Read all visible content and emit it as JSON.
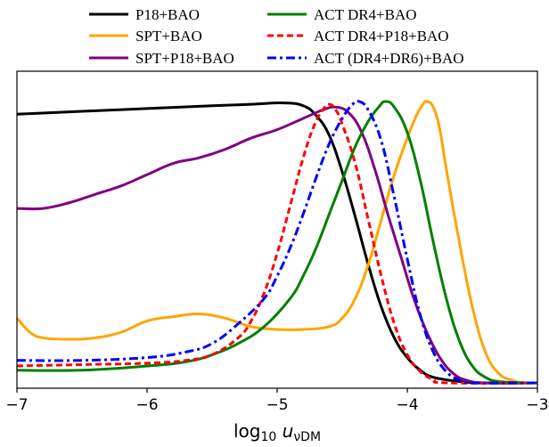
{
  "chart_data": {
    "type": "line",
    "xlabel": "log₁₀ u_νDM",
    "xlim": [
      -7,
      -3
    ],
    "ylim": [
      0,
      1
    ],
    "xticks": [
      -7,
      -6,
      -5,
      -4,
      -3
    ],
    "xtick_labels": [
      "−7",
      "−6",
      "−5",
      "−4",
      "−3"
    ],
    "yticks": [],
    "grid": false,
    "legend_position": "top",
    "series": [
      {
        "name": "P18+BAO",
        "color": "#000000",
        "dash": "solid",
        "points": [
          [
            -7,
            0.955
          ],
          [
            -6.5,
            0.965
          ],
          [
            -6,
            0.975
          ],
          [
            -5.5,
            0.985
          ],
          [
            -5.2,
            0.99
          ],
          [
            -4.95,
            0.995
          ],
          [
            -4.8,
            0.985
          ],
          [
            -4.7,
            0.95
          ],
          [
            -4.6,
            0.88
          ],
          [
            -4.5,
            0.75
          ],
          [
            -4.4,
            0.59
          ],
          [
            -4.3,
            0.42
          ],
          [
            -4.2,
            0.27
          ],
          [
            -4.1,
            0.16
          ],
          [
            -4.0,
            0.09
          ],
          [
            -3.9,
            0.045
          ],
          [
            -3.8,
            0.02
          ],
          [
            -3.6,
            0.005
          ],
          [
            -3.4,
            0.0
          ],
          [
            -3,
            0.0
          ]
        ]
      },
      {
        "name": "SPT+BAO",
        "color": "#FFA500",
        "dash": "solid",
        "points": [
          [
            -7,
            0.23
          ],
          [
            -6.9,
            0.18
          ],
          [
            -6.8,
            0.16
          ],
          [
            -6.6,
            0.155
          ],
          [
            -6.4,
            0.16
          ],
          [
            -6.2,
            0.18
          ],
          [
            -6.0,
            0.22
          ],
          [
            -5.8,
            0.235
          ],
          [
            -5.6,
            0.245
          ],
          [
            -5.4,
            0.23
          ],
          [
            -5.2,
            0.2
          ],
          [
            -5.0,
            0.19
          ],
          [
            -4.8,
            0.19
          ],
          [
            -4.6,
            0.2
          ],
          [
            -4.5,
            0.23
          ],
          [
            -4.4,
            0.3
          ],
          [
            -4.3,
            0.42
          ],
          [
            -4.2,
            0.58
          ],
          [
            -4.1,
            0.74
          ],
          [
            -4.0,
            0.87
          ],
          [
            -3.93,
            0.95
          ],
          [
            -3.88,
            0.99
          ],
          [
            -3.85,
            1.0
          ],
          [
            -3.8,
            0.98
          ],
          [
            -3.75,
            0.9
          ],
          [
            -3.7,
            0.76
          ],
          [
            -3.6,
            0.5
          ],
          [
            -3.5,
            0.27
          ],
          [
            -3.4,
            0.11
          ],
          [
            -3.3,
            0.035
          ],
          [
            -3.2,
            0.01
          ],
          [
            -3.1,
            0.0
          ],
          [
            -3,
            0.0
          ]
        ]
      },
      {
        "name": "SPT+P18+BAO",
        "color": "#800080",
        "dash": "solid",
        "points": [
          [
            -7,
            0.62
          ],
          [
            -6.8,
            0.62
          ],
          [
            -6.6,
            0.64
          ],
          [
            -6.4,
            0.67
          ],
          [
            -6.2,
            0.7
          ],
          [
            -6.0,
            0.74
          ],
          [
            -5.8,
            0.78
          ],
          [
            -5.6,
            0.8
          ],
          [
            -5.4,
            0.83
          ],
          [
            -5.2,
            0.87
          ],
          [
            -5.0,
            0.9
          ],
          [
            -4.8,
            0.94
          ],
          [
            -4.65,
            0.97
          ],
          [
            -4.55,
            0.98
          ],
          [
            -4.45,
            0.96
          ],
          [
            -4.35,
            0.89
          ],
          [
            -4.25,
            0.76
          ],
          [
            -4.15,
            0.6
          ],
          [
            -4.05,
            0.45
          ],
          [
            -3.95,
            0.3
          ],
          [
            -3.85,
            0.18
          ],
          [
            -3.75,
            0.09
          ],
          [
            -3.65,
            0.035
          ],
          [
            -3.55,
            0.01
          ],
          [
            -3.4,
            0.0
          ],
          [
            -3,
            0.0
          ]
        ]
      },
      {
        "name": "ACT DR4+BAO",
        "color": "#008000",
        "dash": "solid",
        "points": [
          [
            -7,
            0.045
          ],
          [
            -6.5,
            0.045
          ],
          [
            -6.0,
            0.06
          ],
          [
            -5.7,
            0.075
          ],
          [
            -5.5,
            0.1
          ],
          [
            -5.3,
            0.14
          ],
          [
            -5.1,
            0.2
          ],
          [
            -4.9,
            0.3
          ],
          [
            -4.8,
            0.38
          ],
          [
            -4.7,
            0.48
          ],
          [
            -4.6,
            0.6
          ],
          [
            -4.5,
            0.72
          ],
          [
            -4.4,
            0.84
          ],
          [
            -4.3,
            0.93
          ],
          [
            -4.22,
            0.98
          ],
          [
            -4.17,
            1.0
          ],
          [
            -4.1,
            0.98
          ],
          [
            -4.0,
            0.89
          ],
          [
            -3.9,
            0.72
          ],
          [
            -3.8,
            0.5
          ],
          [
            -3.7,
            0.3
          ],
          [
            -3.6,
            0.15
          ],
          [
            -3.5,
            0.06
          ],
          [
            -3.4,
            0.02
          ],
          [
            -3.3,
            0.005
          ],
          [
            -3.1,
            0.0
          ],
          [
            -3,
            0.0
          ]
        ]
      },
      {
        "name": "ACT DR4+P18+BAO",
        "color": "#FF0000",
        "dash": "dashed",
        "points": [
          [
            -7,
            0.06
          ],
          [
            -6.5,
            0.065
          ],
          [
            -6.0,
            0.07
          ],
          [
            -5.7,
            0.08
          ],
          [
            -5.5,
            0.1
          ],
          [
            -5.3,
            0.16
          ],
          [
            -5.2,
            0.22
          ],
          [
            -5.1,
            0.32
          ],
          [
            -5.0,
            0.46
          ],
          [
            -4.9,
            0.63
          ],
          [
            -4.8,
            0.8
          ],
          [
            -4.72,
            0.91
          ],
          [
            -4.65,
            0.97
          ],
          [
            -4.6,
            0.99
          ],
          [
            -4.55,
            0.97
          ],
          [
            -4.5,
            0.92
          ],
          [
            -4.4,
            0.78
          ],
          [
            -4.3,
            0.58
          ],
          [
            -4.2,
            0.38
          ],
          [
            -4.1,
            0.21
          ],
          [
            -4.0,
            0.1
          ],
          [
            -3.9,
            0.04
          ],
          [
            -3.8,
            0.012
          ],
          [
            -3.7,
            0.0
          ],
          [
            -3,
            0.0
          ]
        ]
      },
      {
        "name": "ACT (DR4+DR6)+BAO",
        "color": "#0000FF",
        "dash": "dashdot",
        "points": [
          [
            -7,
            0.08
          ],
          [
            -6.5,
            0.08
          ],
          [
            -6.0,
            0.09
          ],
          [
            -5.7,
            0.11
          ],
          [
            -5.5,
            0.14
          ],
          [
            -5.3,
            0.21
          ],
          [
            -5.1,
            0.3
          ],
          [
            -5.0,
            0.38
          ],
          [
            -4.9,
            0.48
          ],
          [
            -4.8,
            0.6
          ],
          [
            -4.7,
            0.73
          ],
          [
            -4.6,
            0.85
          ],
          [
            -4.5,
            0.94
          ],
          [
            -4.42,
            0.99
          ],
          [
            -4.37,
            1.0
          ],
          [
            -4.3,
            0.97
          ],
          [
            -4.2,
            0.86
          ],
          [
            -4.1,
            0.66
          ],
          [
            -4.0,
            0.44
          ],
          [
            -3.9,
            0.24
          ],
          [
            -3.8,
            0.11
          ],
          [
            -3.7,
            0.04
          ],
          [
            -3.6,
            0.01
          ],
          [
            -3.5,
            0.0
          ],
          [
            -3,
            0.0
          ]
        ]
      }
    ]
  }
}
